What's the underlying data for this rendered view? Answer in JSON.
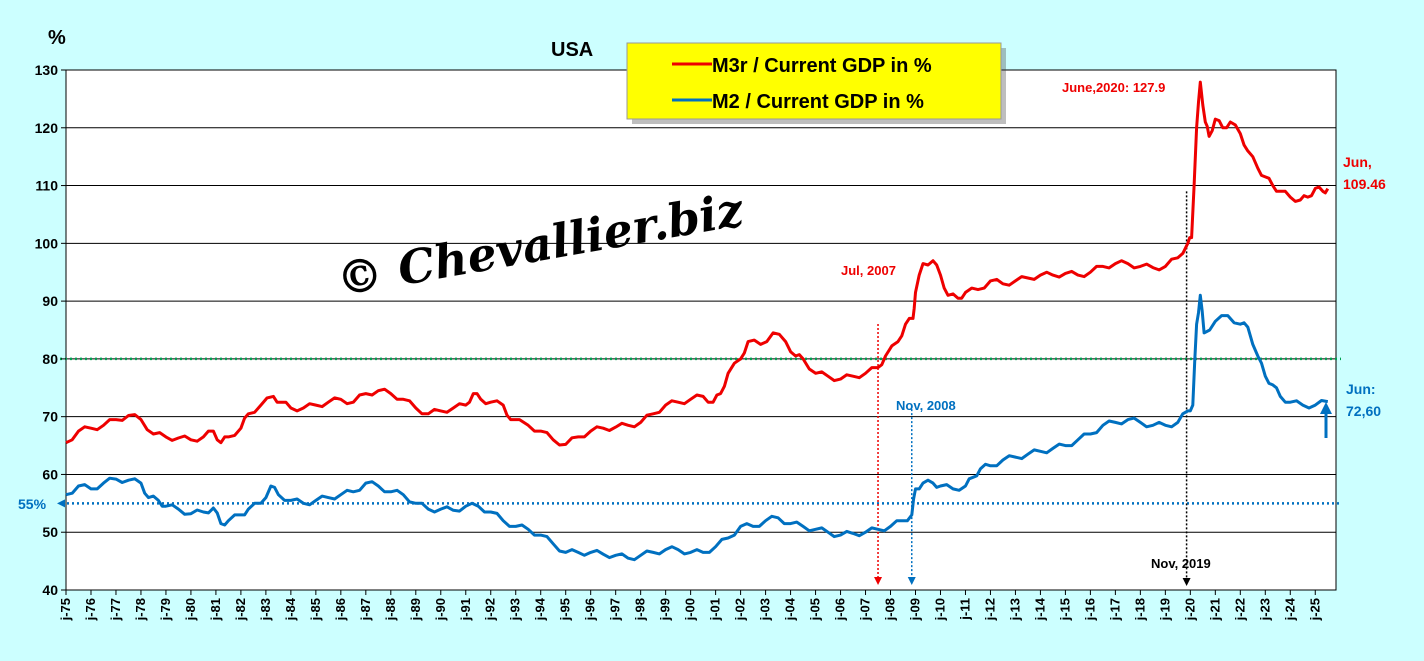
{
  "chart_data": {
    "type": "line",
    "title": "USA",
    "ylabel": "%",
    "xlabel": "",
    "ylim": [
      40,
      130
    ],
    "yticks": [
      40,
      50,
      60,
      70,
      80,
      90,
      100,
      110,
      120,
      130
    ],
    "grid": "horizontal",
    "legend_position": "top-center",
    "background_color": "#ccffff",
    "plot_background_color": "#ffffff",
    "legend_background_color": "#ffff00",
    "x_tick_labels": [
      "j-75",
      "j-76",
      "j-77",
      "j-78",
      "j-79",
      "j-80",
      "j-81",
      "j-82",
      "j-83",
      "j-84",
      "j-85",
      "j-86",
      "j-87",
      "j-88",
      "j-89",
      "j-90",
      "j-91",
      "j-92",
      "j-93",
      "j-94",
      "j-95",
      "j-96",
      "j-97",
      "j-98",
      "j-99",
      "j-00",
      "j-01",
      "j-02",
      "j-03",
      "j-04",
      "j-05",
      "j-06",
      "j-07",
      "j-08",
      "j-09",
      "j-10",
      "j-11",
      "j-12",
      "j-13",
      "j-14",
      "j-15",
      "j-16",
      "j-17",
      "j-18",
      "j-19",
      "j-20",
      "j-21",
      "j-22",
      "j-23",
      "j-24",
      "j-25"
    ],
    "series": [
      {
        "name": "M3r / Current GDP in %",
        "color": "#ee0000",
        "points": [
          [
            1975.0,
            65.5
          ],
          [
            1975.5,
            67.5
          ],
          [
            1976.0,
            68.0
          ],
          [
            1976.5,
            68.5
          ],
          [
            1977.0,
            69.5
          ],
          [
            1977.5,
            70.2
          ],
          [
            1978.0,
            69.5
          ],
          [
            1978.5,
            67.0
          ],
          [
            1979.0,
            66.5
          ],
          [
            1979.5,
            66.3
          ],
          [
            1980.0,
            66.0
          ],
          [
            1980.5,
            66.5
          ],
          [
            1980.9,
            67.5
          ],
          [
            1981.2,
            65.5
          ],
          [
            1981.5,
            66.5
          ],
          [
            1982.0,
            68.0
          ],
          [
            1982.3,
            70.5
          ],
          [
            1982.8,
            72.0
          ],
          [
            1983.3,
            73.5
          ],
          [
            1983.6,
            72.5
          ],
          [
            1984.0,
            71.5
          ],
          [
            1984.5,
            71.5
          ],
          [
            1985.0,
            72.0
          ],
          [
            1985.5,
            72.5
          ],
          [
            1986.0,
            73.0
          ],
          [
            1986.5,
            72.5
          ],
          [
            1987.0,
            74.0
          ],
          [
            1987.5,
            74.5
          ],
          [
            1988.0,
            74.0
          ],
          [
            1988.5,
            73.0
          ],
          [
            1989.0,
            71.5
          ],
          [
            1989.5,
            70.5
          ],
          [
            1990.0,
            71.0
          ],
          [
            1990.5,
            71.5
          ],
          [
            1991.0,
            72.0
          ],
          [
            1991.3,
            74.0
          ],
          [
            1991.6,
            73.0
          ],
          [
            1992.0,
            72.5
          ],
          [
            1992.5,
            72.0
          ],
          [
            1992.8,
            69.5
          ],
          [
            1993.5,
            68.5
          ],
          [
            1994.0,
            67.5
          ],
          [
            1994.5,
            66.0
          ],
          [
            1995.0,
            65.2
          ],
          [
            1995.5,
            66.5
          ],
          [
            1996.0,
            67.5
          ],
          [
            1996.5,
            68.0
          ],
          [
            1997.0,
            68.2
          ],
          [
            1997.5,
            68.5
          ],
          [
            1998.0,
            69.0
          ],
          [
            1998.5,
            70.5
          ],
          [
            1999.0,
            72.0
          ],
          [
            1999.5,
            72.5
          ],
          [
            2000.0,
            73.0
          ],
          [
            2000.5,
            73.5
          ],
          [
            2000.9,
            72.5
          ],
          [
            2001.2,
            74.0
          ],
          [
            2001.5,
            77.5
          ],
          [
            2002.0,
            80.0
          ],
          [
            2002.3,
            83.0
          ],
          [
            2002.8,
            82.5
          ],
          [
            2003.3,
            84.5
          ],
          [
            2003.8,
            83.0
          ],
          [
            2004.2,
            80.5
          ],
          [
            2004.5,
            80.0
          ],
          [
            2005.0,
            77.5
          ],
          [
            2005.5,
            77.0
          ],
          [
            2006.0,
            76.5
          ],
          [
            2006.5,
            77.0
          ],
          [
            2007.0,
            77.5
          ],
          [
            2007.5,
            78.5
          ],
          [
            2007.8,
            80.5
          ],
          [
            2008.3,
            83.0
          ],
          [
            2008.6,
            86.0
          ],
          [
            2008.9,
            87.0
          ],
          [
            2009.0,
            91.5
          ],
          [
            2009.3,
            96.5
          ],
          [
            2009.7,
            97.0
          ],
          [
            2010.0,
            94.5
          ],
          [
            2010.3,
            91.0
          ],
          [
            2010.7,
            90.5
          ],
          [
            2011.0,
            91.5
          ],
          [
            2011.5,
            92.0
          ],
          [
            2012.0,
            93.5
          ],
          [
            2012.5,
            93.0
          ],
          [
            2013.0,
            93.5
          ],
          [
            2013.5,
            94.0
          ],
          [
            2014.0,
            94.5
          ],
          [
            2014.5,
            94.5
          ],
          [
            2015.0,
            94.8
          ],
          [
            2015.5,
            94.5
          ],
          [
            2016.0,
            95.0
          ],
          [
            2016.5,
            96.0
          ],
          [
            2017.0,
            96.5
          ],
          [
            2017.5,
            96.5
          ],
          [
            2018.0,
            96.0
          ],
          [
            2018.5,
            95.8
          ],
          [
            2019.0,
            96.0
          ],
          [
            2019.5,
            97.5
          ],
          [
            2019.9,
            100.0
          ],
          [
            2020.05,
            101.0
          ],
          [
            2020.25,
            120.0
          ],
          [
            2020.4,
            127.9
          ],
          [
            2020.6,
            121.0
          ],
          [
            2020.75,
            118.5
          ],
          [
            2021.0,
            121.5
          ],
          [
            2021.3,
            120.0
          ],
          [
            2021.6,
            121.0
          ],
          [
            2022.0,
            119.0
          ],
          [
            2022.3,
            116.0
          ],
          [
            2022.7,
            113.0
          ],
          [
            2023.0,
            111.5
          ],
          [
            2023.3,
            110.0
          ],
          [
            2023.6,
            109.0
          ],
          [
            2024.0,
            108.0
          ],
          [
            2024.4,
            107.5
          ],
          [
            2024.7,
            108.0
          ],
          [
            2025.0,
            109.5
          ],
          [
            2025.3,
            109.0
          ],
          [
            2025.5,
            109.46
          ]
        ]
      },
      {
        "name": "M2 / Current GDP in %",
        "color": "#0070c0",
        "points": [
          [
            1975.0,
            56.5
          ],
          [
            1975.5,
            58.0
          ],
          [
            1976.0,
            57.5
          ],
          [
            1976.5,
            58.5
          ],
          [
            1977.0,
            59.2
          ],
          [
            1977.5,
            59.0
          ],
          [
            1978.0,
            58.5
          ],
          [
            1978.3,
            56.0
          ],
          [
            1978.7,
            55.5
          ],
          [
            1979.0,
            54.5
          ],
          [
            1979.5,
            54.0
          ],
          [
            1980.0,
            53.2
          ],
          [
            1980.5,
            53.5
          ],
          [
            1980.9,
            54.2
          ],
          [
            1981.2,
            51.5
          ],
          [
            1981.5,
            52.0
          ],
          [
            1982.0,
            53.0
          ],
          [
            1982.3,
            54.0
          ],
          [
            1982.8,
            55.0
          ],
          [
            1983.2,
            58.0
          ],
          [
            1983.5,
            56.5
          ],
          [
            1984.0,
            55.5
          ],
          [
            1984.5,
            55.0
          ],
          [
            1985.0,
            55.5
          ],
          [
            1985.5,
            56.0
          ],
          [
            1986.0,
            56.5
          ],
          [
            1986.5,
            57.0
          ],
          [
            1987.0,
            58.5
          ],
          [
            1987.5,
            58.0
          ],
          [
            1988.0,
            57.0
          ],
          [
            1988.5,
            56.5
          ],
          [
            1989.0,
            55.0
          ],
          [
            1989.5,
            54.0
          ],
          [
            1990.0,
            54.0
          ],
          [
            1990.5,
            53.8
          ],
          [
            1991.0,
            54.5
          ],
          [
            1991.5,
            54.5
          ],
          [
            1992.0,
            53.5
          ],
          [
            1992.5,
            52.0
          ],
          [
            1993.0,
            51.0
          ],
          [
            1993.5,
            50.5
          ],
          [
            1994.0,
            49.5
          ],
          [
            1994.5,
            48.0
          ],
          [
            1995.0,
            46.5
          ],
          [
            1995.5,
            46.5
          ],
          [
            1996.0,
            46.5
          ],
          [
            1996.5,
            46.2
          ],
          [
            1997.0,
            46.0
          ],
          [
            1997.5,
            45.5
          ],
          [
            1998.0,
            46.0
          ],
          [
            1998.5,
            46.5
          ],
          [
            1999.0,
            47.0
          ],
          [
            1999.5,
            47.0
          ],
          [
            2000.0,
            46.5
          ],
          [
            2000.5,
            46.5
          ],
          [
            2001.0,
            47.5
          ],
          [
            2001.5,
            49.0
          ],
          [
            2002.0,
            51.0
          ],
          [
            2002.5,
            51.0
          ],
          [
            2003.0,
            52.0
          ],
          [
            2003.5,
            52.5
          ],
          [
            2004.0,
            51.5
          ],
          [
            2004.5,
            51.0
          ],
          [
            2005.0,
            50.5
          ],
          [
            2005.5,
            50.0
          ],
          [
            2006.0,
            49.5
          ],
          [
            2006.5,
            49.8
          ],
          [
            2007.0,
            50.0
          ],
          [
            2007.5,
            50.5
          ],
          [
            2008.0,
            51.0
          ],
          [
            2008.5,
            52.0
          ],
          [
            2008.85,
            53.0
          ],
          [
            2009.0,
            57.5
          ],
          [
            2009.3,
            58.5
          ],
          [
            2009.7,
            58.5
          ],
          [
            2010.0,
            58.0
          ],
          [
            2010.5,
            57.5
          ],
          [
            2011.0,
            58.0
          ],
          [
            2011.3,
            59.5
          ],
          [
            2011.6,
            61.0
          ],
          [
            2012.0,
            61.5
          ],
          [
            2012.5,
            62.5
          ],
          [
            2013.0,
            63.0
          ],
          [
            2013.5,
            63.5
          ],
          [
            2014.0,
            64.0
          ],
          [
            2014.5,
            64.5
          ],
          [
            2015.0,
            65.0
          ],
          [
            2015.5,
            66.0
          ],
          [
            2016.0,
            67.0
          ],
          [
            2016.5,
            68.5
          ],
          [
            2017.0,
            69.0
          ],
          [
            2017.5,
            69.5
          ],
          [
            2018.0,
            69.0
          ],
          [
            2018.5,
            68.5
          ],
          [
            2019.0,
            68.5
          ],
          [
            2019.5,
            69.0
          ],
          [
            2019.9,
            71.0
          ],
          [
            2020.1,
            72.0
          ],
          [
            2020.25,
            86.0
          ],
          [
            2020.4,
            91.0
          ],
          [
            2020.55,
            84.5
          ],
          [
            2021.0,
            86.5
          ],
          [
            2021.5,
            87.5
          ],
          [
            2022.0,
            86.0
          ],
          [
            2022.3,
            85.5
          ],
          [
            2022.7,
            80.5
          ],
          [
            2023.0,
            77.0
          ],
          [
            2023.3,
            75.5
          ],
          [
            2023.6,
            73.5
          ],
          [
            2024.0,
            72.5
          ],
          [
            2024.5,
            72.0
          ],
          [
            2025.0,
            72.0
          ],
          [
            2025.5,
            72.6
          ]
        ]
      }
    ],
    "reference_lines": [
      {
        "y": 80,
        "color": "#00a050",
        "label": ""
      },
      {
        "y": 55,
        "color": "#0070c0",
        "label": "55%"
      }
    ],
    "annotations": [
      {
        "text": "June,2020: 127.9",
        "x": 2020.4,
        "y": 127.9,
        "color": "#ee0000"
      },
      {
        "text": "Jul, 2007",
        "x": 2007.5,
        "color": "#ee0000"
      },
      {
        "text": "Nov, 2008",
        "x": 2008.85,
        "color": "#0070c0"
      },
      {
        "text": "Nov, 2019",
        "x": 2019.85,
        "color": "#000000"
      },
      {
        "text": "Jun,",
        "text2": "109.46",
        "color": "#ee0000"
      },
      {
        "text": "Jun:",
        "text2": "72,60",
        "color": "#0070c0"
      }
    ],
    "watermark": "© Chevallier.biz"
  }
}
